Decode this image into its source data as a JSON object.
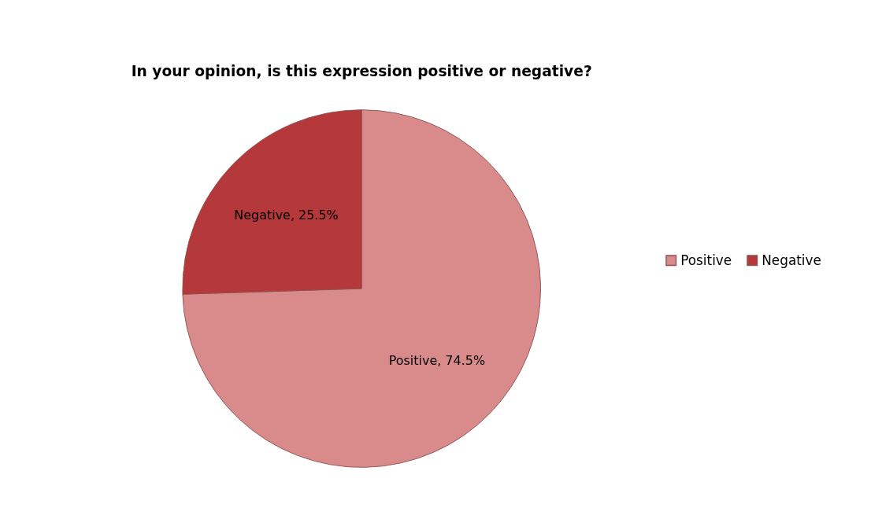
{
  "chart_data": {
    "type": "pie",
    "title": "In your opinion, is this expression positive or negative?",
    "categories": [
      "Positive",
      "Negative"
    ],
    "values": [
      74.5,
      25.5
    ],
    "colors": [
      "#d98a8a",
      "#b5383a"
    ],
    "value_labels": [
      "Positive, 74.5%",
      "Negative, 25.5%"
    ],
    "legend": "right"
  }
}
